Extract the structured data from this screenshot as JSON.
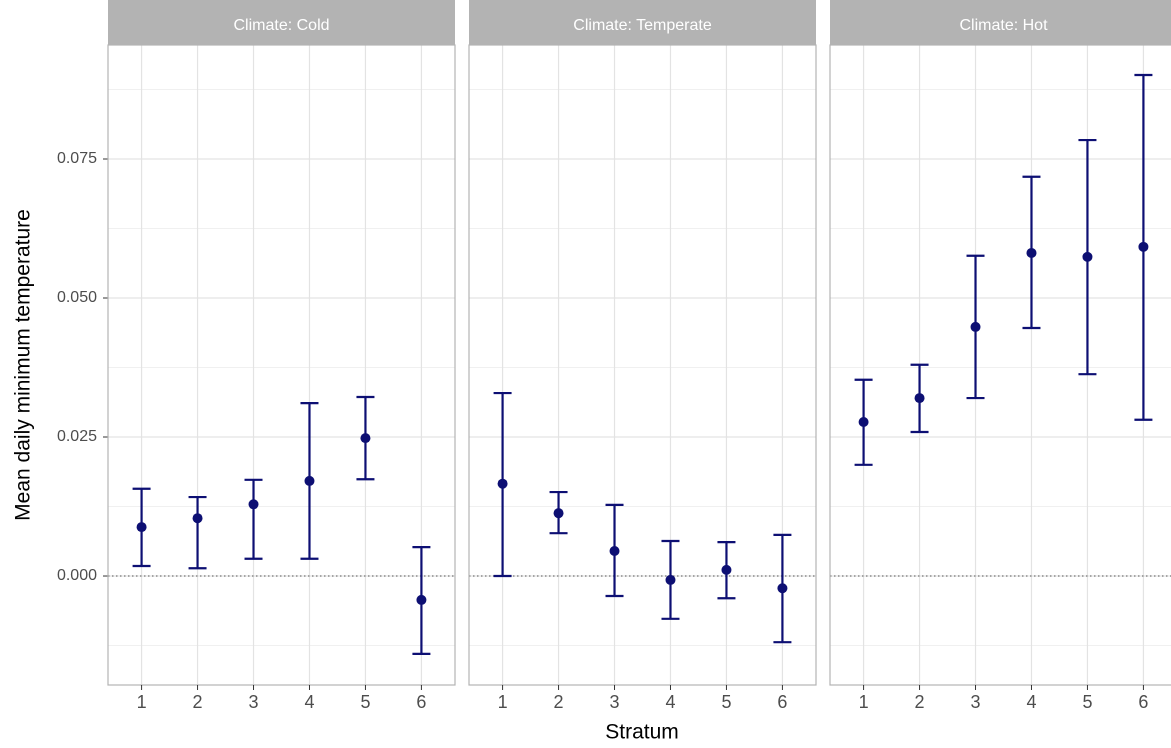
{
  "chart_data": {
    "type": "errorbar",
    "y_label": "Mean daily minimum temperature",
    "x_label": "Stratum",
    "color": "#0d0f73",
    "grid": true,
    "reference_line": 0,
    "ylim": [
      -0.0196,
      0.0955
    ],
    "yticks": [
      {
        "value": 0,
        "label": "0.000"
      },
      {
        "value": 0.025,
        "label": "0.025"
      },
      {
        "value": 0.05,
        "label": "0.050"
      },
      {
        "value": 0.075,
        "label": "0.075"
      }
    ],
    "facets": [
      {
        "title": "Climate: Cold",
        "categories": [
          "1",
          "2",
          "3",
          "4",
          "5",
          "6"
        ],
        "values": [
          0.0088,
          0.0104,
          0.0129,
          0.0171,
          0.0248,
          -0.0043
        ],
        "lower": [
          0.0018,
          0.0014,
          0.0031,
          0.0031,
          0.0174,
          -0.014
        ],
        "upper": [
          0.0157,
          0.0142,
          0.0173,
          0.0311,
          0.0322,
          0.0052
        ]
      },
      {
        "title": "Climate: Temperate",
        "categories": [
          "1",
          "2",
          "3",
          "4",
          "5",
          "6"
        ],
        "values": [
          0.0166,
          0.0113,
          0.0045,
          -0.0007,
          0.0011,
          -0.0022
        ],
        "lower": [
          0.0,
          0.0077,
          -0.0036,
          -0.0077,
          -0.004,
          -0.0119
        ],
        "upper": [
          0.0329,
          0.0151,
          0.0128,
          0.0063,
          0.0061,
          0.0074
        ]
      },
      {
        "title": "Climate: Hot",
        "categories": [
          "1",
          "2",
          "3",
          "4",
          "5",
          "6"
        ],
        "values": [
          0.0277,
          0.032,
          0.0448,
          0.0581,
          0.0574,
          0.0592
        ],
        "lower": [
          0.02,
          0.0259,
          0.032,
          0.0446,
          0.0363,
          0.0281
        ],
        "upper": [
          0.0353,
          0.038,
          0.0576,
          0.0718,
          0.0784,
          0.0901
        ]
      }
    ]
  }
}
